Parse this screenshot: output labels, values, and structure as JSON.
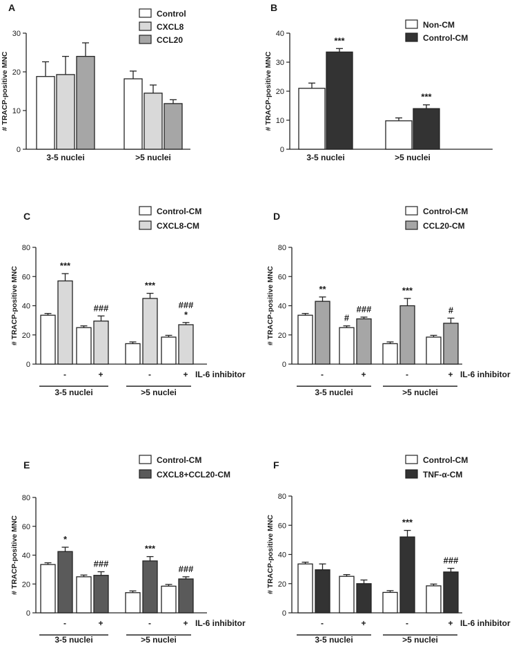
{
  "figure": {
    "y_axis_label": "# TRACP-positive MNC",
    "treatment_label": "IL-6 inhibitor",
    "colors": {
      "white": "#ffffff",
      "light": "#d9d9d9",
      "mid": "#a6a6a6",
      "dark": "#5a5a5a",
      "black": "#333333",
      "stroke": "#222222"
    }
  },
  "chart_data": [
    {
      "panel": "A",
      "type": "bar",
      "groups": [
        "3-5 nuclei",
        ">5 nuclei"
      ],
      "ylim": [
        0,
        30
      ],
      "yticks": [
        0,
        10,
        20,
        30
      ],
      "series": [
        {
          "name": "Control",
          "color": "#ffffff",
          "values": [
            18.8,
            18.2
          ],
          "errors": [
            3.8,
            2.0
          ],
          "labels": [
            "",
            ""
          ]
        },
        {
          "name": "CXCL8",
          "color": "#d9d9d9",
          "values": [
            19.3,
            14.5
          ],
          "errors": [
            4.7,
            2.1
          ],
          "labels": [
            "",
            ""
          ]
        },
        {
          "name": "CCL20",
          "color": "#a6a6a6",
          "values": [
            24.0,
            11.8
          ],
          "errors": [
            3.5,
            1.0
          ],
          "labels": [
            "",
            ""
          ]
        }
      ]
    },
    {
      "panel": "B",
      "type": "bar",
      "groups": [
        "3-5 nuclei",
        ">5 nuclei"
      ],
      "ylim": [
        0,
        40
      ],
      "yticks": [
        0,
        10,
        20,
        30,
        40
      ],
      "series": [
        {
          "name": "Non-CM",
          "color": "#ffffff",
          "values": [
            21.0,
            9.8
          ],
          "errors": [
            1.8,
            1.0
          ],
          "labels": [
            "",
            ""
          ]
        },
        {
          "name": "Control-CM",
          "color": "#333333",
          "values": [
            33.5,
            14.0
          ],
          "errors": [
            1.2,
            1.3
          ],
          "labels": [
            "***",
            "***"
          ]
        }
      ]
    },
    {
      "panel": "C",
      "type": "bar",
      "groups": [
        "3-5 nuclei",
        ">5 nuclei"
      ],
      "inhibitor": [
        "-",
        "+",
        "-",
        "+"
      ],
      "ylim": [
        0,
        80
      ],
      "yticks": [
        0,
        20,
        40,
        60,
        80
      ],
      "series": [
        {
          "name": "Control-CM",
          "color": "#ffffff",
          "values": [
            33.5,
            25.0,
            14.0,
            18.5
          ],
          "errors": [
            1.2,
            1.2,
            1.2,
            1.2
          ],
          "labels": [
            "",
            "",
            "",
            ""
          ]
        },
        {
          "name": "CXCL8-CM",
          "color": "#d9d9d9",
          "values": [
            57.0,
            29.5,
            45.0,
            27.0
          ],
          "errors": [
            5.0,
            3.5,
            3.5,
            1.5
          ],
          "labels": [
            "***",
            "###",
            "***",
            "###\n*"
          ]
        }
      ]
    },
    {
      "panel": "D",
      "type": "bar",
      "groups": [
        "3-5 nuclei",
        ">5 nuclei"
      ],
      "inhibitor": [
        "-",
        "+",
        "-",
        "+"
      ],
      "ylim": [
        0,
        80
      ],
      "yticks": [
        0,
        20,
        40,
        60,
        80
      ],
      "series": [
        {
          "name": "Control-CM",
          "color": "#ffffff",
          "values": [
            33.5,
            25.0,
            14.0,
            18.5
          ],
          "errors": [
            1.2,
            1.2,
            1.2,
            1.2
          ],
          "labels": [
            "",
            "#",
            "",
            ""
          ]
        },
        {
          "name": "CCL20-CM",
          "color": "#a6a6a6",
          "values": [
            43.0,
            31.0,
            40.0,
            28.0
          ],
          "errors": [
            3.0,
            1.2,
            5.0,
            3.5
          ],
          "labels": [
            "**",
            "###",
            "***",
            "#"
          ]
        }
      ]
    },
    {
      "panel": "E",
      "type": "bar",
      "groups": [
        "3-5 nuclei",
        ">5 nuclei"
      ],
      "inhibitor": [
        "-",
        "+",
        "-",
        "+"
      ],
      "ylim": [
        0,
        80
      ],
      "yticks": [
        0,
        20,
        40,
        60,
        80
      ],
      "series": [
        {
          "name": "Control-CM",
          "color": "#ffffff",
          "values": [
            33.5,
            25.0,
            14.0,
            18.5
          ],
          "errors": [
            1.2,
            1.2,
            1.2,
            1.2
          ],
          "labels": [
            "",
            "",
            "",
            ""
          ]
        },
        {
          "name": "CXCL8+CCL20-CM",
          "color": "#5a5a5a",
          "values": [
            42.5,
            26.0,
            36.0,
            23.5
          ],
          "errors": [
            3.0,
            2.5,
            3.0,
            1.5
          ],
          "labels": [
            "*",
            "###",
            "***",
            "###"
          ]
        }
      ]
    },
    {
      "panel": "F",
      "type": "bar",
      "groups": [
        "3-5 nuclei",
        ">5 nuclei"
      ],
      "inhibitor": [
        "-",
        "+",
        "-",
        "+"
      ],
      "ylim": [
        0,
        80
      ],
      "yticks": [
        0,
        20,
        40,
        60,
        80
      ],
      "series": [
        {
          "name": "Control-CM",
          "color": "#ffffff",
          "values": [
            33.5,
            25.0,
            14.0,
            18.5
          ],
          "errors": [
            1.2,
            1.2,
            1.2,
            1.2
          ],
          "labels": [
            "",
            "",
            "",
            ""
          ]
        },
        {
          "name": "TNF-α-CM",
          "color": "#333333",
          "values": [
            29.5,
            20.0,
            52.0,
            28.0
          ],
          "errors": [
            4.0,
            2.5,
            4.5,
            2.5
          ],
          "labels": [
            "",
            "",
            "***",
            "###"
          ]
        }
      ]
    }
  ]
}
